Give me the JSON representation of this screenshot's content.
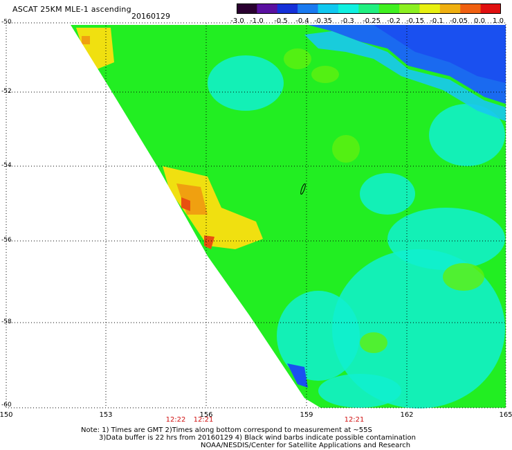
{
  "header": {
    "title": "ASCAT 25KM MLE-1 ascending",
    "date": "20160129"
  },
  "colorbar": {
    "labels": [
      "-3.0",
      "-1.0",
      "-0.5",
      "-0.4",
      "-0.35",
      "-0.3",
      "-0.25",
      "-0.2",
      "-0.15",
      "-0.1",
      "-0.05",
      "0.0",
      "1.0"
    ],
    "colors": [
      "#2a0030",
      "#5a10a0",
      "#1530d8",
      "#1a7af0",
      "#10c8f0",
      "#10f0e0",
      "#20f080",
      "#40f020",
      "#8cf020",
      "#e8f010",
      "#f0b010",
      "#f06010",
      "#e01010"
    ]
  },
  "map": {
    "lat_labels": [
      "-50",
      "-52",
      "-54",
      "-56",
      "-58",
      "-60"
    ],
    "lon_labels": [
      "150",
      "153",
      "156",
      "159",
      "162",
      "165"
    ],
    "times": [
      "12:22",
      "12:21",
      "12:21"
    ],
    "swath_colors": {
      "cyan": "#10f0d0",
      "green": "#22ee22",
      "lime": "#60f010",
      "yellow": "#f0e010",
      "orange": "#f0a010",
      "red": "#e85010",
      "blue": "#1a50f0",
      "lightblue": "#18c8f0"
    }
  },
  "notes": {
    "line1": "Note: 1) Times are GMT 2)Times along bottom correspond to measurement at ~55S",
    "line2": "3)Data buffer is 22 hrs from 20160129 4) Black wind barbs indicate possible contamination",
    "line3": "NOAA/NESDIS/Center for Satellite Applications and Research"
  }
}
